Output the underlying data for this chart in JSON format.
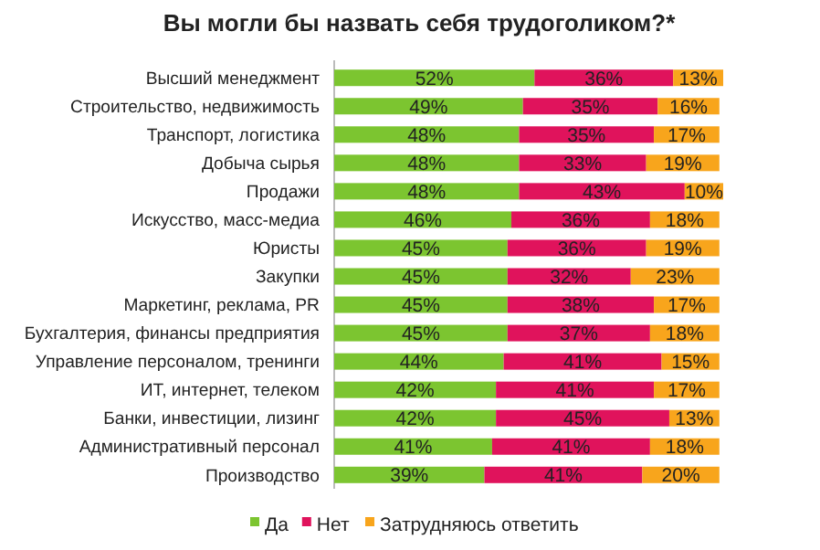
{
  "chart_data": {
    "type": "bar",
    "orientation": "horizontal",
    "stacked": true,
    "relative": false,
    "title": "Вы могли бы назвать себя трудоголиком?*",
    "categories": [
      "Высший менеджмент",
      "Строительство, недвижимость",
      "Транспорт, логистика",
      "Добыча сырья",
      "Продажи",
      "Искусство, масс-медиа",
      "Юристы",
      "Закупки",
      "Маркетинг, реклама, PR",
      "Бухгалтерия, финансы предприятия",
      "Управление персоналом, тренинги",
      "ИТ, интернет, телеком",
      "Банки, инвестиции, лизинг",
      "Административный персонал",
      "Производство"
    ],
    "series": [
      {
        "name": "Да",
        "color": "#7cc530",
        "values": [
          52,
          49,
          48,
          48,
          48,
          46,
          45,
          45,
          45,
          45,
          44,
          42,
          42,
          41,
          39
        ],
        "value_labels": [
          "52%",
          "49%",
          "48%",
          "48%",
          "48%",
          "46%",
          "45%",
          "45%",
          "45%",
          "45%",
          "44%",
          "42%",
          "42%",
          "41%",
          "39%"
        ]
      },
      {
        "name": "Нет",
        "color": "#e0135c",
        "values": [
          36,
          35,
          35,
          33,
          43,
          36,
          36,
          32,
          38,
          37,
          41,
          41,
          45,
          41,
          41
        ],
        "value_labels": [
          "36%",
          "35%",
          "35%",
          "33%",
          "43%",
          "36%",
          "36%",
          "32%",
          "38%",
          "37%",
          "41%",
          "41%",
          "45%",
          "41%",
          "41%"
        ]
      },
      {
        "name": "Затрудняюсь ответить",
        "color": "#f8a51c",
        "values": [
          13,
          16,
          17,
          19,
          10,
          18,
          19,
          23,
          17,
          18,
          15,
          17,
          13,
          18,
          20
        ],
        "value_labels": [
          "13%",
          "16%",
          "17%",
          "19%",
          "10%",
          "18%",
          "19%",
          "23%",
          "17%",
          "18%",
          "15%",
          "17%",
          "13%",
          "18%",
          "20%"
        ]
      }
    ],
    "legend": "bottom"
  }
}
